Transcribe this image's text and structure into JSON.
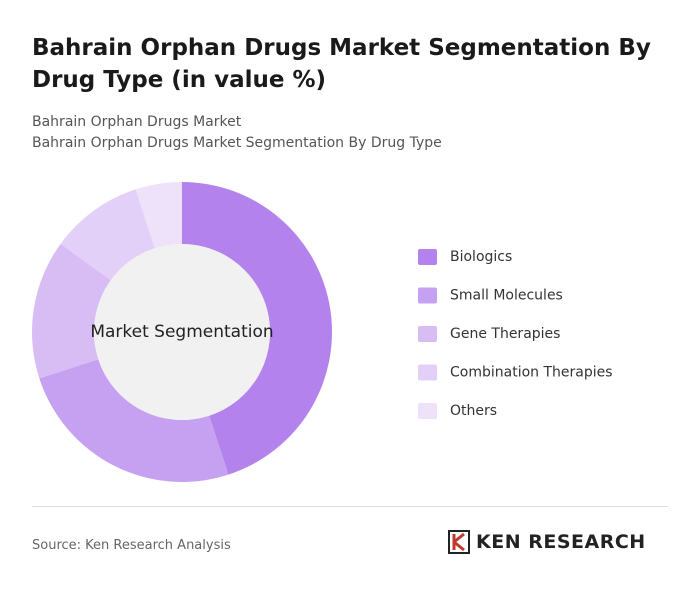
{
  "chart_data": {
    "type": "donut",
    "title": "Bahrain Orphan Drugs Market Segmentation By Drug Type (in value %)",
    "subtitle": [
      "Bahrain Orphan Drugs Market",
      "Bahrain Orphan Drugs Market Segmentation By Drug Type"
    ],
    "center_label": "Market Segmentation",
    "categories": [
      "Biologics",
      "Small Molecules",
      "Gene Therapies",
      "Combination Therapies",
      "Others"
    ],
    "values": [
      45,
      25,
      15,
      10,
      5
    ],
    "colors": [
      "#b382ec",
      "#c6a0f1",
      "#d8bdf5",
      "#e3d0f8",
      "#ede2fa"
    ],
    "legend": "right"
  },
  "footer": {
    "source": "Source: Ken Research Analysis",
    "logo": "KEN RESEARCH"
  }
}
